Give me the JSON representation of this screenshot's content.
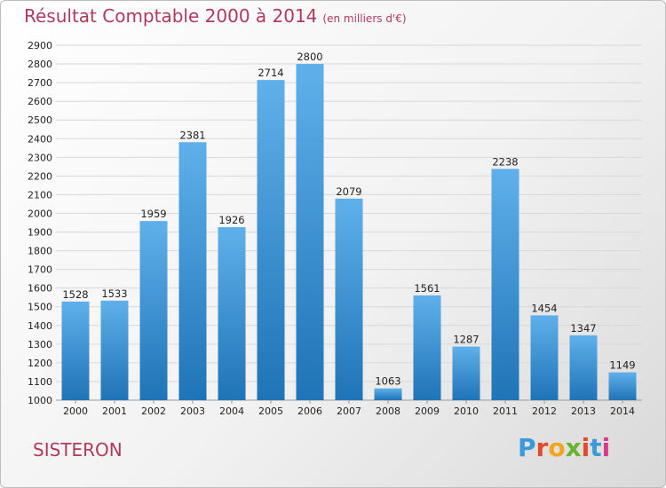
{
  "header": {
    "title": "Résultat Comptable 2000 à 2014",
    "subtitle": "(en milliers d'€)"
  },
  "footer": {
    "city": "SISTERON",
    "logo": "Proxiti"
  },
  "colors": {
    "title": "#b03a5b",
    "bar_top": "#5fb0ea",
    "bar_bottom": "#1f74b7",
    "grid": "#d8d8d8",
    "logo": [
      "#3a9ad9",
      "#e24a2b",
      "#f2a51e",
      "#6ab42d",
      "#e24a2b",
      "#3a9ad9",
      "#d93a8c"
    ]
  },
  "chart_data": {
    "type": "bar",
    "categories": [
      "2000",
      "2001",
      "2002",
      "2003",
      "2004",
      "2005",
      "2006",
      "2007",
      "2008",
      "2009",
      "2010",
      "2011",
      "2012",
      "2013",
      "2014"
    ],
    "values": [
      1528,
      1533,
      1959,
      2381,
      1926,
      2714,
      2800,
      2079,
      1063,
      1561,
      1287,
      2238,
      1454,
      1347,
      1149
    ],
    "title": "Résultat Comptable 2000 à 2014",
    "xlabel": "",
    "ylabel": "",
    "ylim": [
      1000,
      2900
    ],
    "yticks": [
      1000,
      1100,
      1200,
      1300,
      1400,
      1500,
      1600,
      1700,
      1800,
      1900,
      2000,
      2100,
      2200,
      2300,
      2400,
      2500,
      2600,
      2700,
      2800,
      2900
    ],
    "grid": true,
    "data_labels": true
  }
}
